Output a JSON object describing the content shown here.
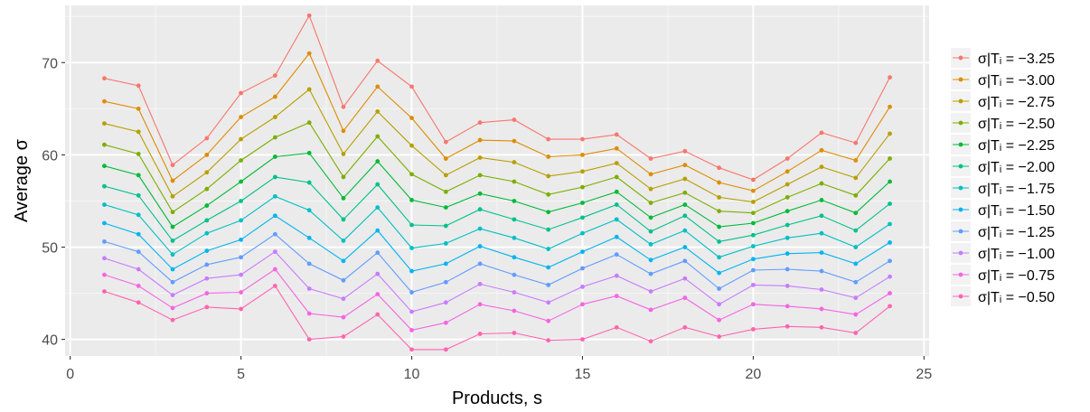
{
  "chart_data": {
    "type": "line",
    "xlabel": "Products, s",
    "ylabel": "Average σ",
    "xlim": [
      -0.15,
      25.15
    ],
    "ylim": [
      38.2,
      76.2
    ],
    "x_ticks": [
      0,
      5,
      10,
      15,
      20,
      25
    ],
    "y_ticks": [
      40,
      50,
      60,
      70
    ],
    "grid": true,
    "legend_position": "right",
    "x": [
      1,
      2,
      3,
      4,
      5,
      6,
      7,
      8,
      9,
      10,
      11,
      12,
      13,
      14,
      15,
      16,
      17,
      18,
      19,
      20,
      21,
      22,
      23,
      24
    ],
    "series": [
      {
        "name": "σ|Tᵢ = −3.25",
        "color": "#F8766D",
        "values": [
          68.3,
          67.5,
          58.9,
          61.8,
          66.7,
          68.6,
          75.1,
          65.2,
          70.2,
          67.4,
          61.4,
          63.5,
          63.8,
          61.7,
          61.7,
          62.2,
          59.6,
          60.4,
          58.6,
          57.3,
          59.6,
          62.4,
          61.3,
          68.4
        ]
      },
      {
        "name": "σ|Tᵢ = −3.00",
        "color": "#DE8C00",
        "values": [
          65.8,
          65.0,
          57.2,
          60.0,
          64.1,
          66.3,
          71.0,
          62.6,
          67.4,
          64.0,
          59.6,
          61.6,
          61.5,
          59.8,
          60.0,
          60.7,
          57.9,
          58.9,
          57.0,
          56.1,
          58.2,
          60.5,
          59.4,
          65.2
        ]
      },
      {
        "name": "σ|Tᵢ = −2.75",
        "color": "#B79F00",
        "values": [
          63.4,
          62.5,
          55.5,
          58.1,
          61.7,
          64.1,
          67.1,
          60.1,
          64.7,
          61.0,
          57.8,
          59.7,
          59.2,
          57.7,
          58.2,
          59.1,
          56.3,
          57.4,
          55.4,
          54.9,
          56.8,
          58.7,
          57.5,
          62.3
        ]
      },
      {
        "name": "σ|Tᵢ = −2.50",
        "color": "#7CAE00",
        "values": [
          61.1,
          60.1,
          53.8,
          56.3,
          59.4,
          61.9,
          63.5,
          57.6,
          62.0,
          57.9,
          56.0,
          57.8,
          57.1,
          55.7,
          56.5,
          57.6,
          54.8,
          55.9,
          53.9,
          53.7,
          55.4,
          56.9,
          55.6,
          59.6
        ]
      },
      {
        "name": "σ|Tᵢ = −2.25",
        "color": "#00BA38",
        "values": [
          58.8,
          57.8,
          52.2,
          54.5,
          57.1,
          59.8,
          60.2,
          55.3,
          59.3,
          55.1,
          54.3,
          55.8,
          55.0,
          53.8,
          54.8,
          56.0,
          53.2,
          54.6,
          52.2,
          52.6,
          53.9,
          55.1,
          53.7,
          57.1
        ]
      },
      {
        "name": "σ|Tᵢ = −2.00",
        "color": "#00C08B",
        "values": [
          56.6,
          55.6,
          50.7,
          52.9,
          55.0,
          57.6,
          57.0,
          53.0,
          56.8,
          52.4,
          52.3,
          54.1,
          53.0,
          51.9,
          53.2,
          54.6,
          51.7,
          53.4,
          50.6,
          51.3,
          52.4,
          53.4,
          51.8,
          54.7
        ]
      },
      {
        "name": "σ|Tᵢ = −1.75",
        "color": "#00BFC4",
        "values": [
          54.6,
          53.5,
          49.2,
          51.5,
          52.9,
          55.5,
          54.0,
          50.7,
          54.3,
          49.9,
          50.4,
          52.0,
          51.0,
          49.8,
          51.5,
          53.0,
          50.3,
          51.8,
          48.9,
          50.1,
          51.0,
          51.5,
          50.0,
          52.5
        ]
      },
      {
        "name": "σ|Tᵢ = −1.50",
        "color": "#00B4F0",
        "values": [
          52.6,
          51.4,
          47.6,
          49.6,
          50.8,
          53.4,
          51.0,
          48.5,
          51.8,
          47.4,
          48.2,
          50.1,
          48.9,
          47.8,
          49.5,
          51.1,
          48.6,
          50.0,
          47.2,
          48.7,
          49.3,
          49.4,
          48.2,
          50.5
        ]
      },
      {
        "name": "σ|Tᵢ = −1.25",
        "color": "#619CFF",
        "values": [
          50.6,
          49.5,
          46.2,
          48.1,
          48.9,
          51.4,
          48.2,
          46.4,
          49.4,
          45.1,
          46.2,
          48.2,
          47.0,
          45.9,
          47.7,
          49.2,
          47.1,
          48.5,
          45.5,
          47.5,
          47.6,
          47.4,
          46.2,
          48.5
        ]
      },
      {
        "name": "σ|Tᵢ = −1.00",
        "color": "#C77CFF",
        "values": [
          48.8,
          47.6,
          44.8,
          46.6,
          47.0,
          49.5,
          45.5,
          44.4,
          47.1,
          43.0,
          44.0,
          46.0,
          45.1,
          44.0,
          45.7,
          46.9,
          45.2,
          46.6,
          43.8,
          45.9,
          45.8,
          45.4,
          44.5,
          46.8
        ]
      },
      {
        "name": "σ|Tᵢ = −0.75",
        "color": "#F564E3",
        "values": [
          47.0,
          45.8,
          43.4,
          45.0,
          45.1,
          47.6,
          42.8,
          42.4,
          44.9,
          41.0,
          41.8,
          43.8,
          43.1,
          42.0,
          43.8,
          44.7,
          43.2,
          44.5,
          42.1,
          43.8,
          43.6,
          43.3,
          42.7,
          45.0
        ]
      },
      {
        "name": "σ|Tᵢ = −0.50",
        "color": "#FF64B0",
        "values": [
          45.2,
          44.0,
          42.1,
          43.5,
          43.3,
          45.8,
          40.0,
          40.3,
          42.7,
          38.9,
          38.9,
          40.6,
          40.7,
          39.9,
          40.0,
          41.3,
          39.8,
          41.3,
          40.3,
          41.1,
          41.4,
          41.3,
          40.7,
          43.6
        ]
      }
    ]
  }
}
